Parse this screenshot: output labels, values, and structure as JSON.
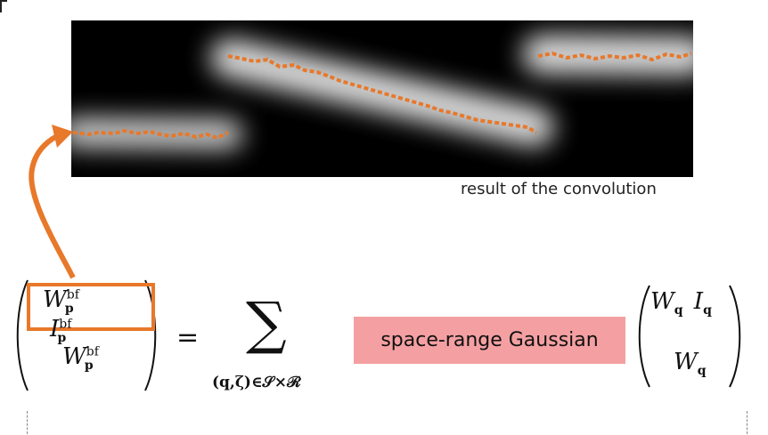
{
  "caption": "result of the convolution",
  "colors": {
    "accent_orange": "#e8782a",
    "highlight_pink": "#f4a0a2",
    "background_black": "#000000"
  },
  "equation": {
    "lhs_top_W": "W",
    "lhs_top_I": "I",
    "lhs_bottom_W": "W",
    "sup_bf": "bf",
    "sub_p": "p",
    "equals": "=",
    "sum_symbol": "∑",
    "sum_index": "(q,ζ)∈𝒮×ℛ",
    "rhs_top_W": "W",
    "rhs_top_I": "I",
    "rhs_bottom_W": "W",
    "sub_q": "q"
  },
  "gaussian_label": "space-range Gaussian"
}
